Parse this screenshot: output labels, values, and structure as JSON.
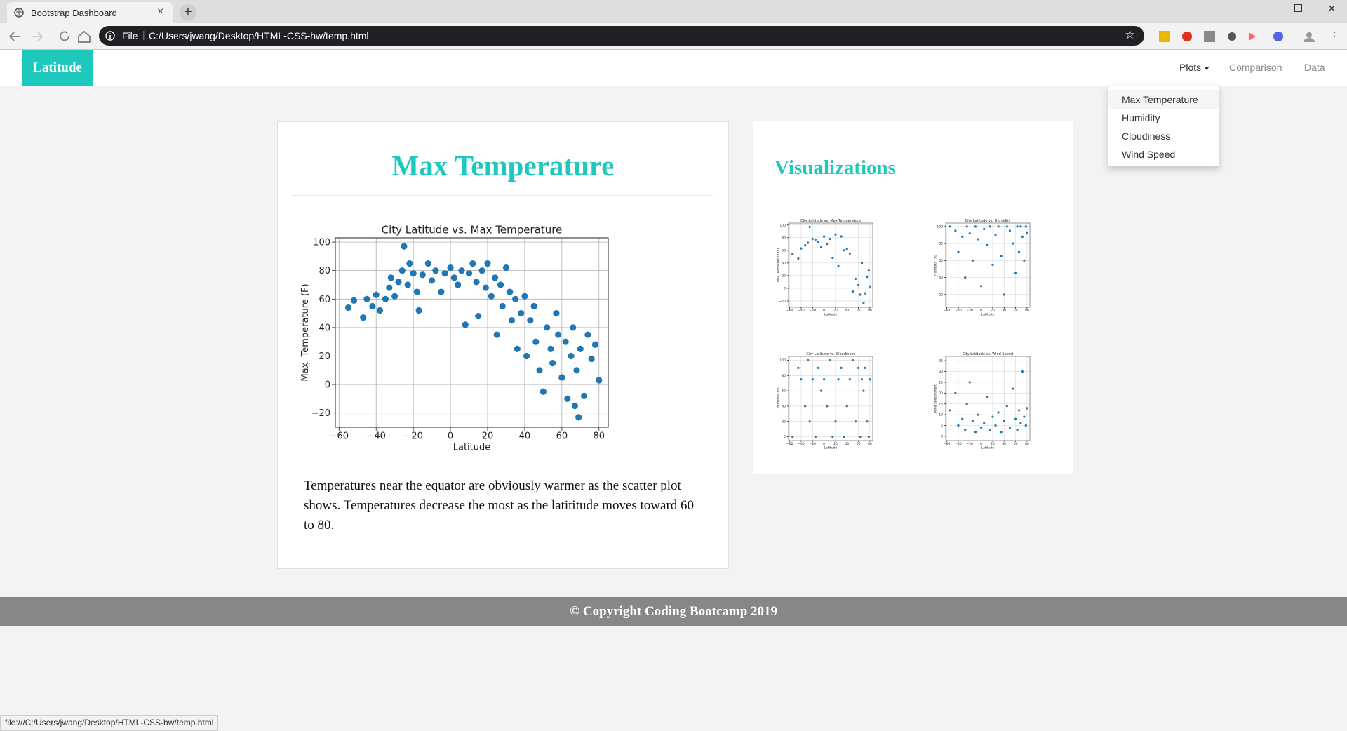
{
  "browser": {
    "tab_title": "Bootstrap Dashboard",
    "address_prefix": "File",
    "url": "C:/Users/jwang/Desktop/HTML-CSS-hw/temp.html",
    "status_url": "file:///C:/Users/jwang/Desktop/HTML-CSS-hw/temp.html"
  },
  "navbar": {
    "brand": "Latitude",
    "links": [
      "Plots",
      "Comparison",
      "Data"
    ],
    "dropdown": [
      "Max Temperature",
      "Humidity",
      "Cloudiness",
      "Wind Speed"
    ]
  },
  "main": {
    "heading": "Max Temperature",
    "text": "Temperatures near the equator are obviously warmer as the scatter plot shows. Temperatures decrease the most as the latititude moves toward 60 to 80."
  },
  "side": {
    "heading": "Visualizations"
  },
  "footer": {
    "text": "© Copyright Coding Bootcamp 2019"
  },
  "chart_data": [
    {
      "type": "scatter",
      "title": "City Latitude vs. Max Temperature",
      "xlabel": "Latitude",
      "ylabel": "Max. Temperature (F)",
      "color": "#1f77b4",
      "grid": true,
      "xlim": [
        -62,
        85
      ],
      "ylim": [
        -30,
        103
      ],
      "xticks": [
        {
          "value": -60,
          "label": "−60"
        },
        {
          "value": -40,
          "label": "−40"
        },
        {
          "value": -20,
          "label": "−20"
        },
        0,
        20,
        40,
        60,
        80
      ],
      "yticks": [
        {
          "value": -20,
          "label": "−20"
        },
        0,
        20,
        40,
        60,
        80,
        100
      ],
      "x": [
        -55,
        -52,
        -47,
        -45,
        -42,
        -40,
        -38,
        -35,
        -33,
        -32,
        -30,
        -28,
        -26,
        -25,
        -23,
        -22,
        -20,
        -18,
        -17,
        -15,
        -12,
        -10,
        -8,
        -5,
        -3,
        0,
        2,
        4,
        6,
        8,
        10,
        12,
        14,
        15,
        17,
        19,
        20,
        22,
        24,
        25,
        27,
        28,
        30,
        32,
        33,
        35,
        36,
        38,
        40,
        41,
        43,
        45,
        46,
        48,
        50,
        52,
        54,
        55,
        57,
        58,
        60,
        62,
        63,
        65,
        66,
        67,
        68,
        69,
        70,
        72,
        74,
        76,
        78,
        80
      ],
      "values": [
        54,
        59,
        47,
        60,
        55,
        63,
        52,
        60,
        68,
        75,
        62,
        72,
        80,
        97,
        70,
        85,
        78,
        65,
        52,
        77,
        85,
        73,
        80,
        65,
        78,
        82,
        75,
        70,
        80,
        42,
        78,
        85,
        72,
        48,
        80,
        68,
        85,
        62,
        75,
        35,
        70,
        55,
        82,
        65,
        45,
        60,
        25,
        50,
        62,
        20,
        45,
        55,
        30,
        10,
        -5,
        40,
        25,
        15,
        50,
        35,
        5,
        30,
        -10,
        20,
        40,
        -15,
        10,
        -23,
        25,
        -8,
        35,
        18,
        28,
        3
      ]
    },
    {
      "type": "scatter",
      "title": "City Latitude vs. Max Temperature",
      "xlabel": "Latitude",
      "ylabel": "Max. Temperature (F)",
      "color": "#1f77b4",
      "grid": true,
      "xlim": [
        -62,
        85
      ],
      "ylim": [
        -30,
        103
      ],
      "xticks": [
        {
          "value": -60,
          "label": "−60"
        },
        {
          "value": -40,
          "label": "−40"
        },
        {
          "value": -20,
          "label": "−20"
        },
        0,
        20,
        40,
        60,
        80
      ],
      "yticks": [
        {
          "value": -20,
          "label": "−20"
        },
        0,
        20,
        40,
        60,
        80,
        100
      ],
      "x": [
        -55,
        -45,
        -40,
        -33,
        -28,
        -25,
        -20,
        -15,
        -10,
        -5,
        0,
        5,
        10,
        15,
        20,
        25,
        30,
        35,
        40,
        45,
        50,
        55,
        60,
        63,
        66,
        69,
        72,
        75,
        78,
        80
      ],
      "values": [
        54,
        47,
        63,
        68,
        72,
        97,
        78,
        77,
        73,
        65,
        82,
        70,
        78,
        48,
        85,
        35,
        82,
        60,
        62,
        55,
        -5,
        15,
        5,
        -10,
        40,
        -23,
        -8,
        18,
        28,
        3
      ]
    },
    {
      "type": "scatter",
      "title": "City Latitude vs. Humidity",
      "xlabel": "Latitude",
      "ylabel": "Humidity (%)",
      "color": "#1f77b4",
      "grid": true,
      "xlim": [
        -62,
        85
      ],
      "ylim": [
        5,
        104
      ],
      "xticks": [
        {
          "value": -60,
          "label": "−60"
        },
        {
          "value": -40,
          "label": "−40"
        },
        {
          "value": -20,
          "label": "−20"
        },
        0,
        20,
        40,
        60,
        80
      ],
      "yticks": [
        20,
        40,
        60,
        80,
        100
      ],
      "x": [
        -55,
        -45,
        -40,
        -33,
        -28,
        -25,
        -20,
        -15,
        -10,
        -5,
        0,
        5,
        10,
        15,
        20,
        25,
        30,
        35,
        40,
        45,
        50,
        55,
        60,
        63,
        66,
        69,
        72,
        75,
        78,
        80
      ],
      "values": [
        100,
        95,
        70,
        88,
        40,
        100,
        92,
        60,
        100,
        85,
        30,
        97,
        78,
        100,
        55,
        90,
        100,
        65,
        20,
        100,
        95,
        80,
        45,
        100,
        70,
        100,
        88,
        60,
        100,
        93
      ]
    },
    {
      "type": "scatter",
      "title": "City Latitude vs. Cloudiness",
      "xlabel": "Latitude",
      "ylabel": "Cloudiness (%)",
      "color": "#1f77b4",
      "grid": true,
      "xlim": [
        -62,
        85
      ],
      "ylim": [
        -5,
        105
      ],
      "xticks": [
        {
          "value": -60,
          "label": "−60"
        },
        {
          "value": -40,
          "label": "−40"
        },
        {
          "value": -20,
          "label": "−20"
        },
        0,
        20,
        40,
        60,
        80
      ],
      "yticks": [
        0,
        20,
        40,
        60,
        80,
        100
      ],
      "x": [
        -55,
        -45,
        -40,
        -33,
        -28,
        -25,
        -20,
        -15,
        -10,
        -5,
        0,
        5,
        10,
        15,
        20,
        25,
        30,
        35,
        40,
        45,
        50,
        55,
        60,
        63,
        66,
        69,
        72,
        75,
        78,
        80
      ],
      "values": [
        0,
        90,
        75,
        40,
        100,
        20,
        75,
        0,
        90,
        60,
        75,
        40,
        100,
        0,
        20,
        75,
        90,
        0,
        40,
        75,
        100,
        20,
        90,
        0,
        75,
        60,
        90,
        20,
        0,
        75
      ]
    },
    {
      "type": "scatter",
      "title": "City Latitude vs. Wind Speed",
      "xlabel": "Latitude",
      "ylabel": "Wind Speed (mph)",
      "color": "#1f77b4",
      "grid": true,
      "xlim": [
        -62,
        85
      ],
      "ylim": [
        -2,
        37
      ],
      "xticks": [
        {
          "value": -60,
          "label": "−60"
        },
        {
          "value": -40,
          "label": "−40"
        },
        {
          "value": -20,
          "label": "−20"
        },
        0,
        20,
        40,
        60,
        80
      ],
      "yticks": [
        0,
        5,
        10,
        15,
        20,
        25,
        30,
        35
      ],
      "x": [
        -55,
        -45,
        -40,
        -33,
        -28,
        -25,
        -20,
        -15,
        -10,
        -5,
        0,
        5,
        10,
        15,
        20,
        25,
        30,
        35,
        40,
        45,
        50,
        55,
        60,
        63,
        66,
        69,
        72,
        75,
        78,
        80
      ],
      "values": [
        12,
        20,
        5,
        8,
        3,
        15,
        25,
        7,
        2,
        10,
        4,
        6,
        18,
        3,
        9,
        5,
        11,
        2,
        7,
        14,
        4,
        22,
        8,
        3,
        12,
        6,
        30,
        9,
        5,
        13
      ]
    }
  ]
}
